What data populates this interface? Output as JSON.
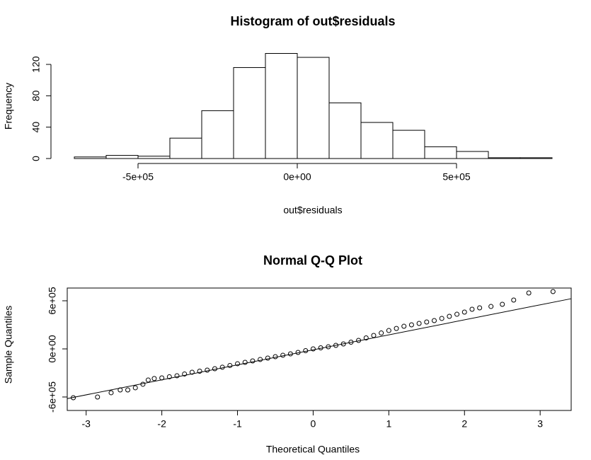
{
  "chart_data": [
    {
      "type": "histogram",
      "title": "Histogram of out$residuals",
      "x_label": "out$residuals",
      "y_label": "Frequency",
      "bins": [
        -700000,
        -600000,
        -500000,
        -400000,
        -300000,
        -200000,
        -100000,
        0,
        100000,
        200000,
        300000,
        400000,
        500000,
        600000,
        700000,
        800000
      ],
      "values": [
        2,
        4,
        3,
        26,
        61,
        116,
        134,
        129,
        71,
        46,
        36,
        15,
        9,
        1,
        1
      ],
      "color": "#ffffff",
      "xlim": [
        -700000,
        800000
      ],
      "ylim": [
        0,
        134
      ],
      "xticks": [
        {
          "value": -500000,
          "label": "-5e+05"
        },
        {
          "value": 0,
          "label": "0e+00"
        },
        {
          "value": 500000,
          "label": "5e+05"
        }
      ],
      "yticks": [
        0,
        40,
        80,
        120
      ]
    },
    {
      "type": "scatter",
      "title": "Normal Q-Q Plot",
      "x_label": "Theoretical Quantiles",
      "y_label": "Sample Quantiles",
      "x": [
        -3.17,
        -2.85,
        -2.67,
        -2.55,
        -2.45,
        -2.35,
        -2.25,
        -2.18,
        -2.1,
        -2.0,
        -1.9,
        -1.8,
        -1.7,
        -1.6,
        -1.5,
        -1.4,
        -1.3,
        -1.2,
        -1.1,
        -1.0,
        -0.9,
        -0.8,
        -0.7,
        -0.6,
        -0.5,
        -0.4,
        -0.3,
        -0.2,
        -0.1,
        0,
        0.1,
        0.2,
        0.3,
        0.4,
        0.5,
        0.6,
        0.7,
        0.8,
        0.9,
        1.0,
        1.1,
        1.2,
        1.3,
        1.4,
        1.5,
        1.6,
        1.7,
        1.8,
        1.9,
        2.0,
        2.1,
        2.2,
        2.35,
        2.5,
        2.65,
        2.85,
        3.17
      ],
      "values": [
        -609000,
        -600000,
        -547000,
        -512000,
        -512000,
        -485000,
        -441000,
        -388000,
        -370000,
        -362000,
        -348000,
        -335000,
        -313000,
        -291000,
        -278000,
        -265000,
        -247000,
        -229000,
        -207000,
        -185000,
        -168000,
        -150000,
        -132000,
        -115000,
        -97000,
        -79000,
        -62000,
        -44000,
        -22000,
        0,
        13000,
        26000,
        44000,
        62000,
        84000,
        106000,
        137000,
        168000,
        198000,
        229000,
        255000,
        282000,
        300000,
        318000,
        335000,
        353000,
        380000,
        406000,
        432000,
        459000,
        494000,
        512000,
        529000,
        556000,
        609000,
        697000,
        715000
      ],
      "line": {
        "x": [
          -3.25,
          3.41
        ],
        "values": [
          -620000,
          626000
        ]
      },
      "color": "#000000",
      "xlim": [
        -3.25,
        3.41
      ],
      "ylim": [
        -768000,
        759000
      ],
      "xticks": [
        -3,
        -2,
        -1,
        0,
        1,
        2,
        3
      ],
      "yticks": [
        {
          "value": -600000,
          "label": "-6e+05"
        },
        {
          "value": 0,
          "label": "0e+00"
        },
        {
          "value": 600000,
          "label": "6e+05"
        }
      ]
    }
  ]
}
